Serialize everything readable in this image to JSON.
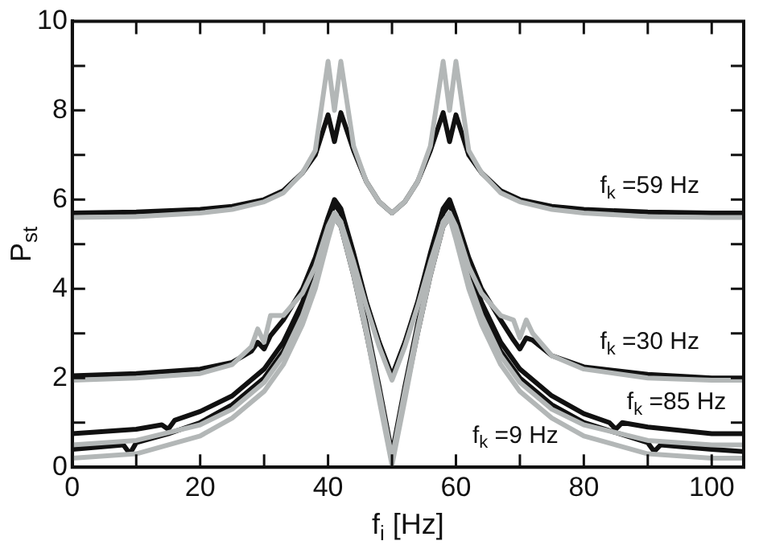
{
  "chart_data": {
    "type": "line",
    "xlabel": "f$_{i}$ [Hz]",
    "ylabel": "P$_{st}$",
    "xlim": [
      0,
      105
    ],
    "ylim": [
      0,
      10
    ],
    "xticks": [
      0,
      {
        "value": 10,
        "label": null
      },
      20,
      {
        "value": 30,
        "label": null
      },
      40,
      {
        "value": 50,
        "label": null
      },
      60,
      {
        "value": 70,
        "label": null
      },
      80,
      {
        "value": 90,
        "label": null
      },
      100
    ],
    "yticks": [
      0,
      {
        "value": 1,
        "label": null
      },
      2,
      {
        "value": 3,
        "label": null
      },
      4,
      {
        "value": 5,
        "label": null
      },
      6,
      {
        "value": 7,
        "label": null
      },
      8,
      {
        "value": 9,
        "label": null
      },
      10
    ],
    "legend": false,
    "marker": "none",
    "line_style": "solid",
    "series": [
      {
        "color": "#b3b7b7",
        "x": [
          0,
          10,
          20,
          25,
          30,
          33,
          36,
          38,
          40,
          41,
          42,
          44,
          46,
          48,
          50,
          52,
          54,
          56,
          58,
          59,
          60,
          62,
          64,
          67,
          70,
          75,
          80,
          90,
          100,
          105
        ],
        "values": [
          5.6,
          5.62,
          5.7,
          5.78,
          5.95,
          6.15,
          6.6,
          7.1,
          9.1,
          8.0,
          9.1,
          7.2,
          6.4,
          5.95,
          5.7,
          5.95,
          6.4,
          7.2,
          9.1,
          8.0,
          9.1,
          7.1,
          6.6,
          6.15,
          5.95,
          5.78,
          5.7,
          5.62,
          5.6,
          5.6
        ]
      },
      {
        "color": "#b3b7b7",
        "x": [
          0,
          10,
          20,
          25,
          28,
          29,
          30,
          31,
          33,
          36,
          38,
          40,
          41,
          42,
          44,
          46,
          48,
          50,
          52,
          54,
          56,
          58,
          59,
          60,
          62,
          64,
          67,
          69,
          70,
          71,
          72,
          75,
          80,
          90,
          100,
          105
        ],
        "values": [
          1.95,
          2.0,
          2.1,
          2.3,
          2.7,
          3.1,
          2.8,
          3.4,
          3.4,
          3.9,
          4.5,
          5.4,
          5.7,
          5.5,
          4.6,
          3.6,
          2.7,
          1.95,
          2.7,
          3.6,
          4.6,
          5.5,
          5.7,
          5.4,
          4.5,
          3.9,
          3.4,
          3.3,
          2.9,
          3.3,
          3.0,
          2.5,
          2.2,
          2.0,
          1.95,
          1.95
        ]
      },
      {
        "color": "#b3b7b7",
        "x": [
          0,
          10,
          20,
          25,
          30,
          33,
          36,
          38,
          40,
          41,
          42,
          44,
          46,
          48,
          50,
          52,
          54,
          56,
          58,
          59,
          60,
          62,
          64,
          67,
          70,
          75,
          80,
          90,
          100,
          105
        ],
        "values": [
          0.5,
          0.6,
          0.95,
          1.3,
          1.9,
          2.5,
          3.4,
          4.2,
          5.2,
          5.7,
          5.5,
          4.4,
          3.1,
          1.7,
          0.2,
          1.7,
          3.1,
          4.4,
          5.5,
          5.7,
          5.2,
          4.2,
          3.4,
          2.5,
          1.9,
          1.3,
          0.95,
          0.6,
          0.5,
          0.5
        ]
      },
      {
        "color": "#b3b7b7",
        "x": [
          0,
          10,
          20,
          25,
          30,
          33,
          36,
          38,
          40,
          41,
          42,
          44,
          46,
          48,
          50,
          52,
          54,
          56,
          58,
          59,
          60,
          62,
          64,
          67,
          70,
          75,
          80,
          90,
          100,
          105
        ],
        "values": [
          0.2,
          0.3,
          0.7,
          1.1,
          1.7,
          2.3,
          3.2,
          4.0,
          5.1,
          5.6,
          5.4,
          4.3,
          3.0,
          1.5,
          0.05,
          1.5,
          3.0,
          4.3,
          5.4,
          5.6,
          5.1,
          4.0,
          3.2,
          2.3,
          1.7,
          1.1,
          0.7,
          0.3,
          0.2,
          0.2
        ]
      },
      {
        "color": "#111111",
        "x": [
          0,
          10,
          20,
          25,
          30,
          33,
          36,
          38,
          40,
          41,
          42,
          44,
          46,
          48,
          50,
          52,
          54,
          56,
          58,
          59,
          60,
          62,
          64,
          67,
          70,
          75,
          80,
          90,
          100,
          105
        ],
        "values": [
          5.7,
          5.72,
          5.78,
          5.85,
          6.0,
          6.2,
          6.6,
          7.0,
          7.9,
          7.3,
          7.95,
          7.1,
          6.4,
          5.95,
          5.7,
          5.95,
          6.4,
          7.1,
          7.95,
          7.3,
          7.9,
          7.0,
          6.6,
          6.2,
          6.0,
          5.85,
          5.78,
          5.72,
          5.7,
          5.7
        ]
      },
      {
        "color": "#111111",
        "x": [
          0,
          10,
          20,
          25,
          28,
          29,
          30,
          31,
          33,
          36,
          38,
          40,
          41,
          42,
          44,
          46,
          48,
          50,
          52,
          54,
          56,
          58,
          59,
          60,
          62,
          64,
          67,
          69,
          70,
          71,
          72,
          75,
          80,
          90,
          100,
          105
        ],
        "values": [
          2.05,
          2.1,
          2.2,
          2.35,
          2.6,
          2.8,
          2.65,
          2.95,
          3.3,
          4.0,
          4.7,
          5.6,
          6.0,
          5.8,
          4.8,
          3.7,
          2.8,
          2.05,
          2.8,
          3.7,
          4.8,
          5.8,
          6.0,
          5.6,
          4.7,
          4.0,
          3.3,
          2.85,
          2.65,
          2.9,
          2.85,
          2.5,
          2.25,
          2.08,
          2.0,
          2.0
        ]
      },
      {
        "color": "#111111",
        "x": [
          0,
          10,
          14,
          15,
          16,
          20,
          25,
          30,
          33,
          36,
          38,
          40,
          41,
          42,
          44,
          46,
          48,
          50,
          52,
          54,
          56,
          58,
          59,
          60,
          62,
          64,
          67,
          70,
          75,
          80,
          84,
          85,
          86,
          90,
          100,
          105
        ],
        "values": [
          0.75,
          0.85,
          0.95,
          0.85,
          1.05,
          1.25,
          1.6,
          2.2,
          2.8,
          3.7,
          4.5,
          5.5,
          5.9,
          5.7,
          4.5,
          3.2,
          1.8,
          0.3,
          1.8,
          3.2,
          4.5,
          5.7,
          5.9,
          5.5,
          4.5,
          3.7,
          2.8,
          2.2,
          1.6,
          1.2,
          1.0,
          0.85,
          1.0,
          0.9,
          0.75,
          0.75
        ]
      },
      {
        "color": "#111111",
        "x": [
          0,
          8,
          9,
          10,
          15,
          20,
          25,
          30,
          33,
          36,
          38,
          40,
          41,
          42,
          44,
          46,
          48,
          50,
          52,
          54,
          56,
          58,
          59,
          60,
          62,
          64,
          67,
          70,
          75,
          80,
          90,
          91,
          92,
          100,
          105
        ],
        "values": [
          0.4,
          0.5,
          0.3,
          0.55,
          0.75,
          1.0,
          1.4,
          2.0,
          2.6,
          3.5,
          4.3,
          5.3,
          5.6,
          5.4,
          4.3,
          3.0,
          1.6,
          0.15,
          1.6,
          3.0,
          4.3,
          5.4,
          5.6,
          5.3,
          4.3,
          3.5,
          2.6,
          2.0,
          1.4,
          1.0,
          0.55,
          0.35,
          0.5,
          0.4,
          0.35
        ]
      }
    ],
    "annotations": [
      "f$_{k}$ =59 Hz",
      "f$_{k}$ =30 Hz",
      "f$_{k}$ =85 Hz",
      "f$_{k}$ =9 Hz"
    ]
  }
}
